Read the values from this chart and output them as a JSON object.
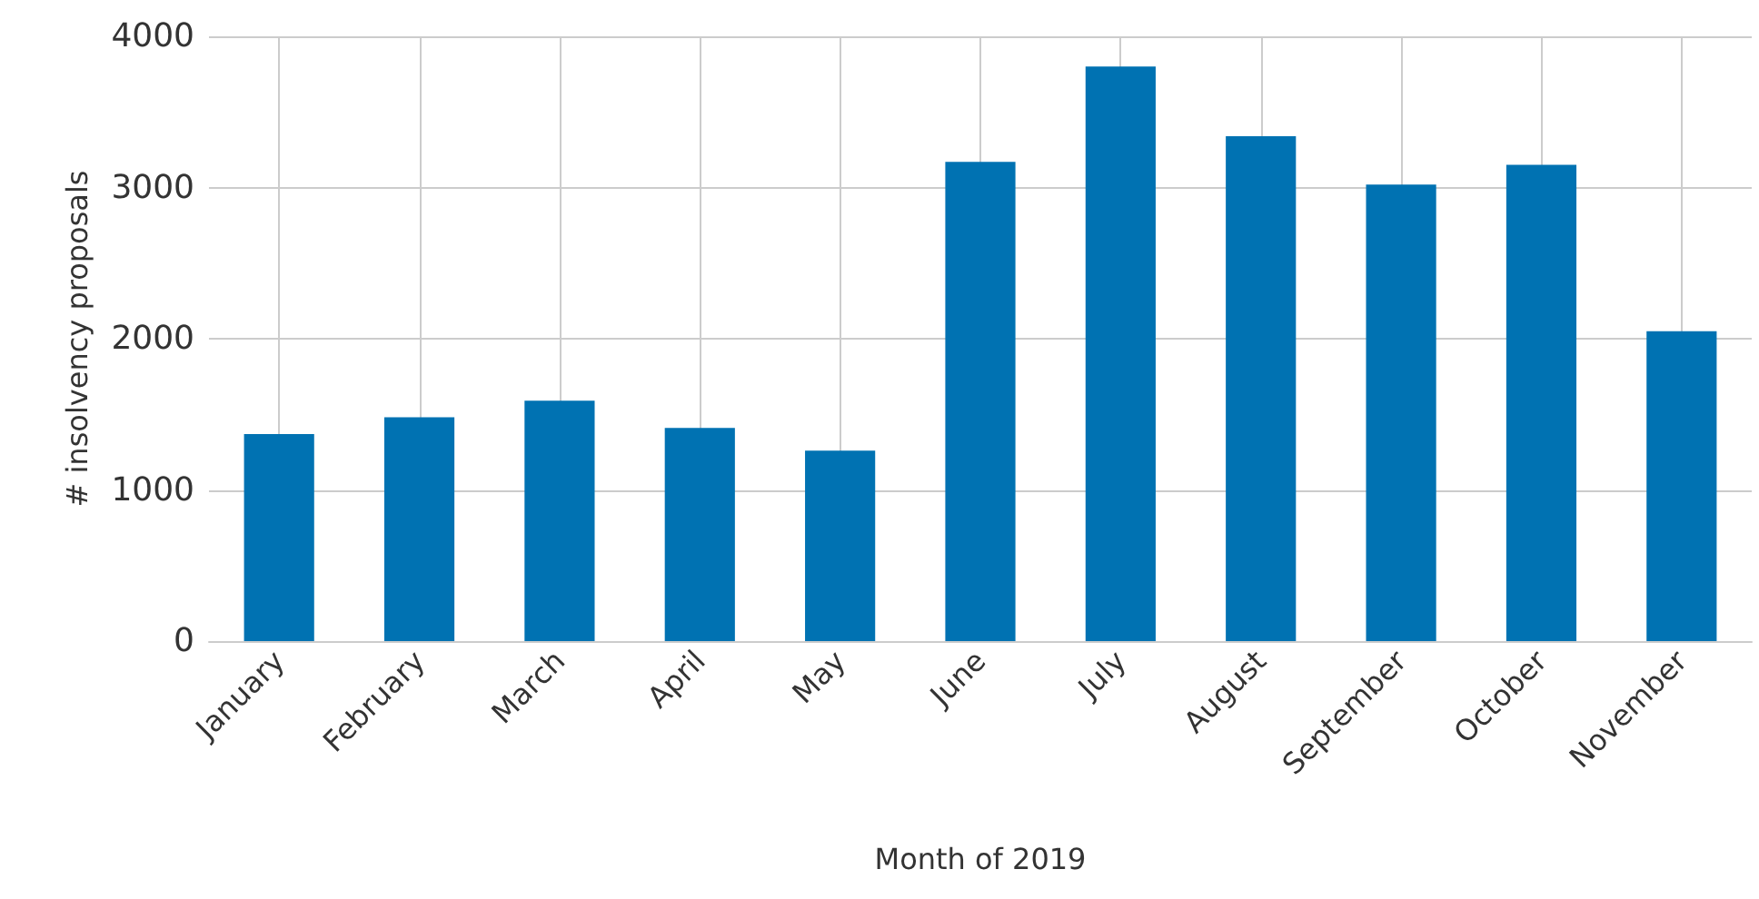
{
  "chart_data": {
    "type": "bar",
    "xlabel": "Month of 2019",
    "ylabel": "# insolvency proposals",
    "categories": [
      "January",
      "February",
      "March",
      "April",
      "May",
      "June",
      "July",
      "August",
      "September",
      "October",
      "November"
    ],
    "values": [
      1370,
      1480,
      1590,
      1410,
      1260,
      3170,
      3800,
      3340,
      3020,
      3150,
      2050
    ],
    "color": "#0072b2",
    "ylim": [
      0,
      4000
    ],
    "yticks": [
      0,
      1000,
      2000,
      3000,
      4000
    ],
    "grid": true
  }
}
